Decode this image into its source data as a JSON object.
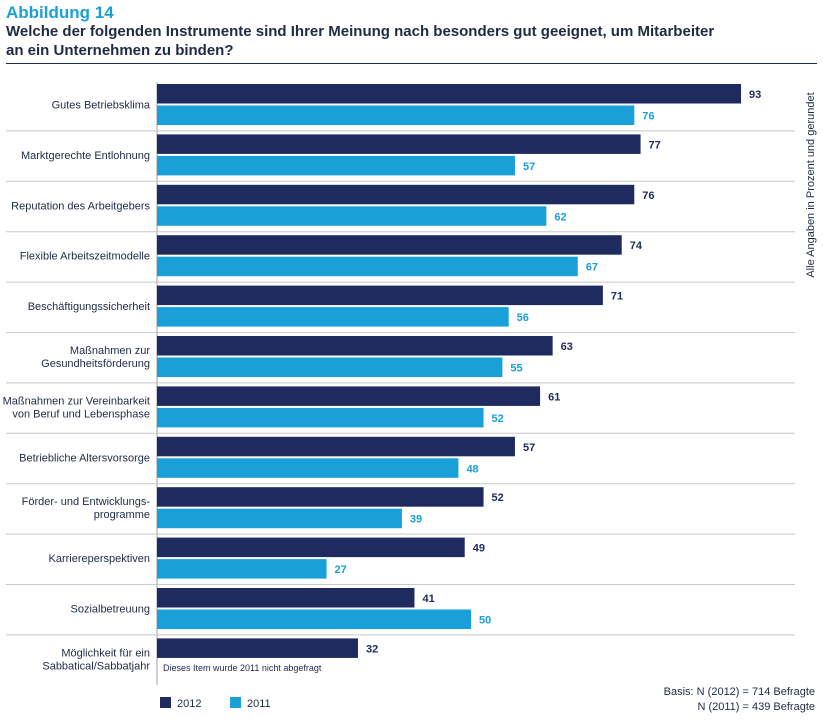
{
  "header": {
    "figure_label": "Abbildung 14",
    "title": "Welche der folgenden Instrumente sind Ihrer Meinung nach besonders gut geeignet, um Mitarbeiter an ein Unternehmen zu binden?"
  },
  "side_note": "Alle Angaben in Prozent und gerundet",
  "footnote": "Dieses Item wurde 2011 nicht abgefragt",
  "basis": {
    "line1": "Basis: N (2012) = 714 Befragte",
    "line2": "N (2011) = 439 Befragte"
  },
  "colors": {
    "series_2012": "#1f2a5e",
    "series_2011": "#1aa0d8",
    "separator": "#c8c8c8"
  },
  "chart_data": {
    "type": "bar",
    "orientation": "horizontal",
    "categories": [
      [
        "Gutes Betriebsklima"
      ],
      [
        "Marktgerechte Entlohnung"
      ],
      [
        "Reputation des Arbeitgebers"
      ],
      [
        "Flexible Arbeitszeitmodelle"
      ],
      [
        "Beschäftigungssicherheit"
      ],
      [
        "Maßnahmen zur",
        "Gesundheitsförderung"
      ],
      [
        "Maßnahmen zur Vereinbarkeit",
        "von Beruf und Lebensphase"
      ],
      [
        "Betriebliche Altersvorsorge"
      ],
      [
        "Förder- und Entwicklungs-",
        "programme"
      ],
      [
        "Karriereperspektiven"
      ],
      [
        "Sozialbetreuung"
      ],
      [
        "Möglichkeit für ein",
        "Sabbatical/Sabbatjahr"
      ]
    ],
    "series": [
      {
        "name": "2012",
        "values": [
          93,
          77,
          76,
          74,
          71,
          63,
          61,
          57,
          52,
          49,
          41,
          32
        ]
      },
      {
        "name": "2011",
        "values": [
          76,
          57,
          62,
          67,
          56,
          55,
          52,
          48,
          39,
          27,
          50,
          null
        ]
      }
    ],
    "xlim": [
      0,
      100
    ],
    "grid": false,
    "legend_position": "bottom-left"
  }
}
